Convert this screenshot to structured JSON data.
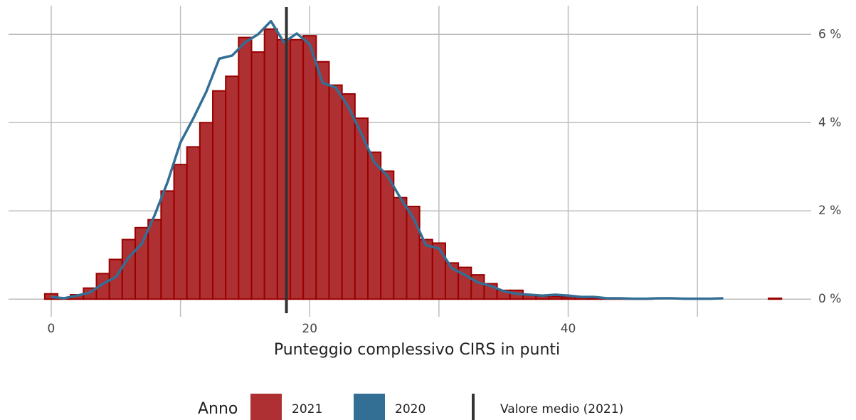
{
  "chart_data": {
    "type": "histogram",
    "xlabel": "Punteggio complessivo CIRS in punti",
    "name": "2021",
    "color": "#ae3033",
    "edge_color": "#990000",
    "bins": [
      -0.5,
      0.5,
      1.5,
      2.5,
      3.5,
      4.5,
      5.5,
      6.5,
      7.5,
      8.5,
      9.5,
      10.5,
      11.5,
      12.5,
      13.5,
      14.5,
      15.5,
      16.5,
      17.5,
      18.5,
      19.5,
      20.5,
      21.5,
      22.5,
      23.5,
      24.5,
      25.5,
      26.5,
      27.5,
      28.5,
      29.5,
      30.5,
      31.5,
      32.5,
      33.5,
      34.5,
      35.5,
      36.5,
      37.5,
      38.5,
      39.5,
      40.5,
      41.5,
      42.5,
      43.5,
      44.5,
      45.5,
      46.5,
      47.5,
      48.5,
      49.5,
      50.5,
      51.5,
      52.5,
      53.5,
      54.5,
      55.5,
      56.5
    ],
    "values": [
      0.12,
      0.03,
      0.1,
      0.25,
      0.58,
      0.9,
      1.35,
      1.62,
      1.8,
      2.45,
      3.05,
      3.45,
      4.0,
      4.72,
      5.05,
      5.93,
      5.6,
      6.12,
      5.88,
      5.88,
      5.97,
      5.38,
      4.85,
      4.65,
      4.1,
      3.33,
      2.9,
      2.3,
      2.1,
      1.35,
      1.27,
      0.82,
      0.72,
      0.55,
      0.35,
      0.2,
      0.2,
      0.1,
      0.07,
      0.06,
      0.05,
      0.04,
      0.03,
      0.01,
      0.01,
      0.01,
      0.01,
      0,
      0,
      0,
      0,
      0,
      0,
      0,
      0,
      0,
      0.02
    ],
    "line": {
      "name": "2020",
      "color": "#336e94",
      "x": [
        0,
        1,
        2,
        3,
        4,
        5,
        6,
        7,
        8,
        9,
        10,
        11,
        12,
        13,
        14,
        15,
        16,
        17,
        18,
        19,
        20,
        21,
        22,
        23,
        24,
        25,
        26,
        27,
        28,
        29,
        30,
        31,
        32,
        33,
        34,
        35,
        36,
        37,
        38,
        39,
        40,
        41,
        42,
        43,
        44,
        45,
        46,
        47,
        48,
        49,
        50,
        51,
        52
      ],
      "values": [
        0.05,
        0.02,
        0.08,
        0.15,
        0.35,
        0.5,
        0.95,
        1.25,
        1.9,
        2.65,
        3.55,
        4.1,
        4.7,
        5.45,
        5.52,
        5.82,
        6.0,
        6.3,
        5.82,
        6.02,
        5.78,
        4.9,
        4.8,
        4.35,
        3.75,
        3.1,
        2.8,
        2.3,
        1.85,
        1.22,
        1.15,
        0.7,
        0.55,
        0.38,
        0.3,
        0.18,
        0.12,
        0.1,
        0.08,
        0.1,
        0.08,
        0.05,
        0.05,
        0.02,
        0.02,
        0.01,
        0.01,
        0.02,
        0.02,
        0.01,
        0.01,
        0.01,
        0.02
      ]
    },
    "mean": {
      "label": "Valore medio (2021)",
      "value": 18.2,
      "color": "#333333"
    },
    "legend_title": "Anno",
    "xlim": [
      -1.76,
      58.8
    ],
    "ylim": [
      -0.4,
      6.65
    ],
    "xticks": [
      0,
      20,
      40
    ],
    "xminor": [
      10,
      30,
      50
    ],
    "yticks": [
      {
        "value": 0,
        "label": "0 %"
      },
      {
        "value": 2,
        "label": "2 %"
      },
      {
        "value": 4,
        "label": "4 %"
      },
      {
        "value": 6,
        "label": "6 %"
      }
    ],
    "grid": true
  }
}
